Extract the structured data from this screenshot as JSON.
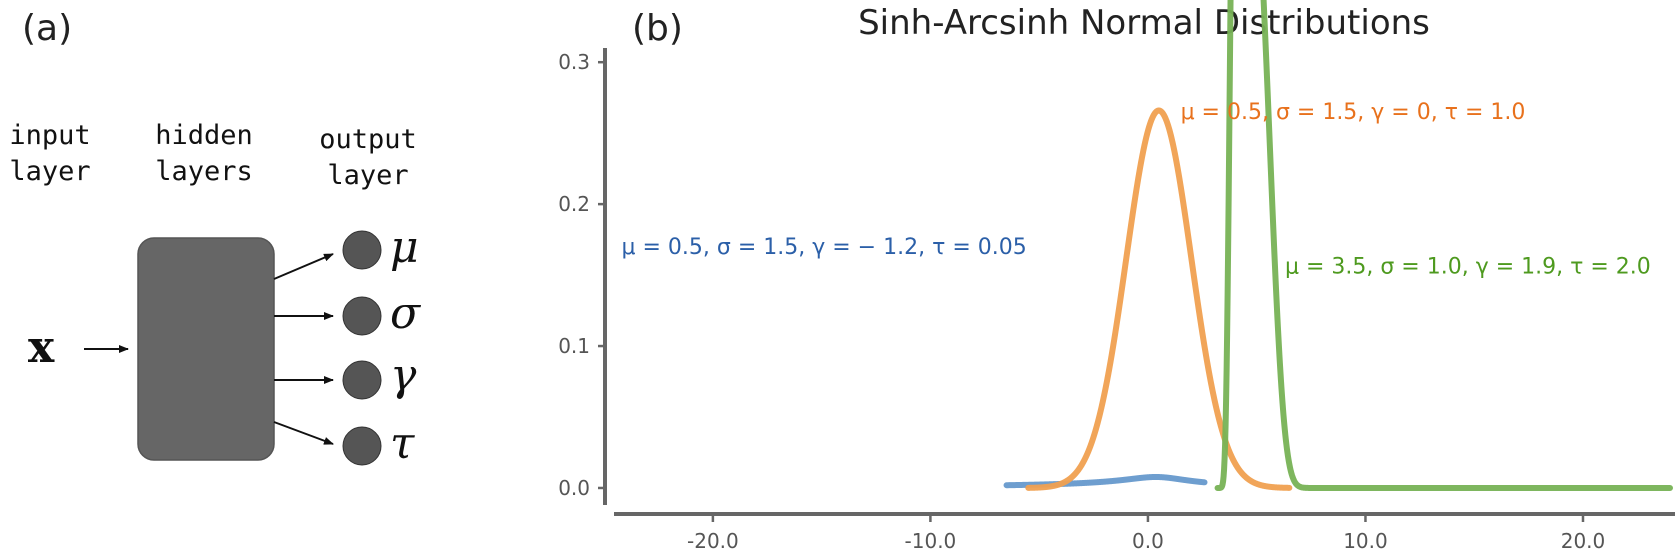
{
  "panel_a": {
    "label": "(a)",
    "columns": [
      {
        "line1": "input",
        "line2": "layer"
      },
      {
        "line1": "hidden",
        "line2": "layers"
      },
      {
        "line1": "output",
        "line2": "layer"
      }
    ],
    "input_symbol": "x",
    "outputs": [
      "μ",
      "σ",
      "γ",
      "τ"
    ],
    "colors": {
      "block": "#666666",
      "node": "#555555",
      "arrow": "#111111"
    }
  },
  "panel_b": {
    "label": "(b)"
  },
  "chart_data": {
    "type": "line",
    "title": "Sinh-Arcsinh Normal Distributions",
    "xlabel": "",
    "ylabel": "",
    "xlim": [
      -24.5,
      24.0
    ],
    "ylim": [
      -0.012,
      0.31
    ],
    "xticks": [
      -20.0,
      -10.0,
      0.0,
      10.0,
      20.0
    ],
    "xtick_labels": [
      "-20.0",
      "-10.0",
      "0.0",
      "10.0",
      "20.0"
    ],
    "yticks": [
      0.0,
      0.1,
      0.2,
      0.3
    ],
    "ytick_labels": [
      "0.0",
      "0.1",
      "0.2",
      "0.3"
    ],
    "grid": false,
    "series": [
      {
        "annotation": "μ = 0.5, σ = 1.5, γ = − 1.2, τ = 0.05",
        "annotation_color": "#2b5fa8",
        "color": "#6699cc",
        "params": {
          "mu": 0.5,
          "sigma": 1.5,
          "gamma": -1.2,
          "tau": 0.05
        },
        "x_range": [
          -6.5,
          2.6
        ],
        "annotation_anchor": [
          -24.2,
          0.165
        ]
      },
      {
        "annotation": "μ = 0.5, σ = 1.5, γ = 0, τ = 1.0",
        "annotation_color": "#e8711c",
        "color": "#f0a050",
        "params": {
          "mu": 0.5,
          "sigma": 1.5,
          "gamma": 0.0,
          "tau": 1.0
        },
        "x_range": [
          -5.5,
          6.5
        ],
        "annotation_anchor": [
          1.5,
          0.26
        ]
      },
      {
        "annotation": "μ = 3.5, σ = 1.0, γ = 1.9, τ = 2.0",
        "annotation_color": "#4e9a1f",
        "color": "#77b255",
        "params": {
          "mu": 3.5,
          "sigma": 1.0,
          "gamma": 1.9,
          "tau": 2.0
        },
        "x_range": [
          3.2,
          24.0
        ],
        "annotation_anchor": [
          6.3,
          0.151
        ]
      }
    ]
  }
}
